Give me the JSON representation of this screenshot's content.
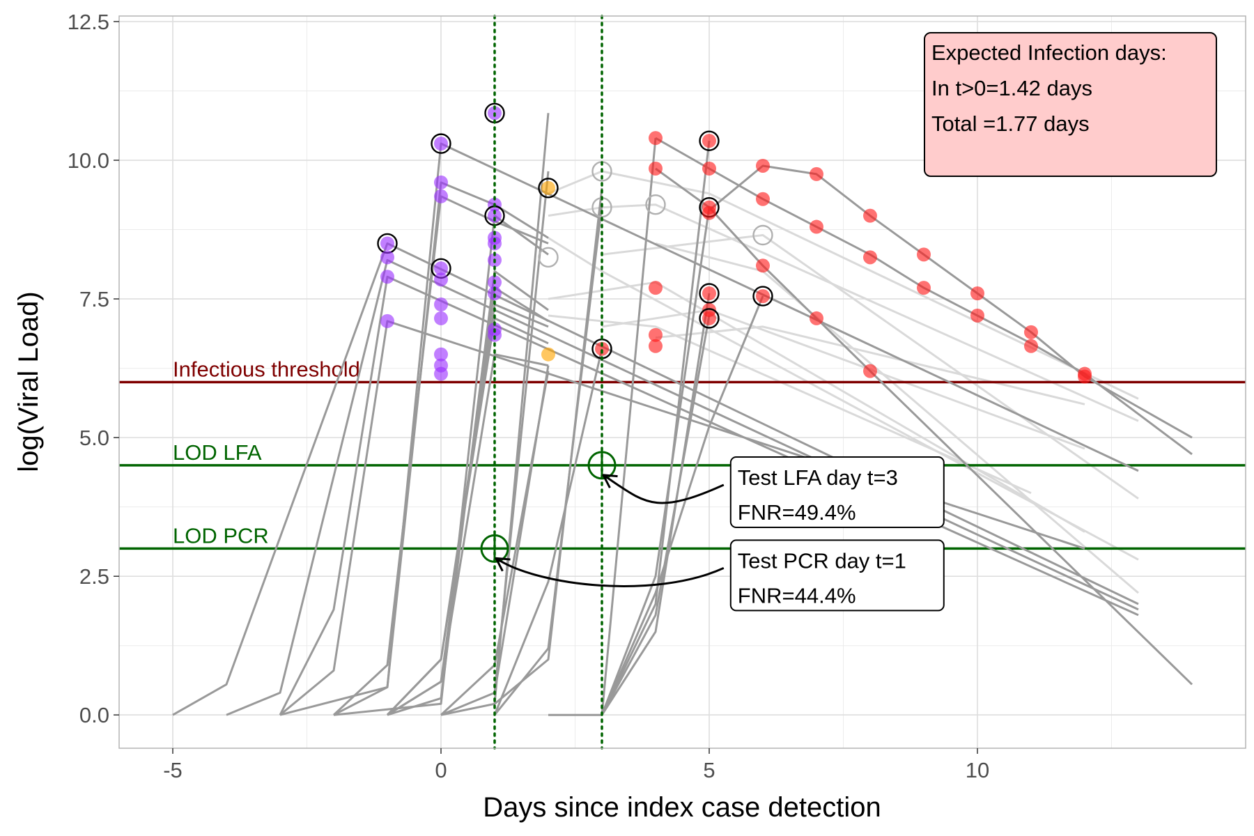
{
  "chart_data": {
    "type": "line",
    "xlabel": "Days since index case detection",
    "ylabel": "log(Viral Load)",
    "xlim": [
      -6,
      15
    ],
    "ylim": [
      -0.6,
      12.6
    ],
    "x_ticks": [
      -5,
      0,
      5,
      10
    ],
    "x_tick_labels": [
      "-5",
      "0",
      "5",
      "10"
    ],
    "y_ticks": [
      0,
      2.5,
      5,
      7.5,
      10,
      12.5
    ],
    "y_tick_labels": [
      "0.0",
      "2.5",
      "5.0",
      "7.5",
      "10.0",
      "12.5"
    ],
    "grid": true,
    "colors": {
      "trajectory": "#999999",
      "trajectory_faint": "#d9d9d9",
      "pre_index": "#9b30ff",
      "near_index": "#ffa500",
      "post_index": "#ff1a1a",
      "infectious_threshold": "#7f0000",
      "lod": "#006400",
      "info_box_fill": "#ffcccc"
    },
    "thresholds": [
      {
        "label": "Infectious threshold",
        "y": 6.0,
        "color": "#7f0000"
      },
      {
        "label": "LOD LFA",
        "y": 4.5,
        "color": "#006400"
      },
      {
        "label": "LOD PCR",
        "y": 3.0,
        "color": "#006400"
      }
    ],
    "test_days": [
      1,
      3
    ],
    "test_markers": [
      {
        "x": 1,
        "y": 3.0,
        "label": "LOD PCR test"
      },
      {
        "x": 3,
        "y": 4.5,
        "label": "LOD LFA test"
      }
    ],
    "annotations": [
      {
        "lines": [
          "Test LFA day t=3",
          "FNR=49.4%"
        ],
        "anchor": [
          3,
          4.5
        ],
        "box_left_x": 5.4,
        "box_top_y": 4.65
      },
      {
        "lines": [
          "Test PCR day t=1",
          "FNR=44.4%"
        ],
        "anchor": [
          1,
          3.0
        ],
        "box_left_x": 5.4,
        "box_top_y": 3.15
      }
    ],
    "info_box": {
      "lines": [
        "Expected Infection days:",
        "In t>0=1.42 days",
        "Total =1.77 days"
      ]
    },
    "series_trajectories": [
      {
        "x": [
          -5,
          -4,
          -1,
          13
        ],
        "y": [
          0,
          0.55,
          8.5,
          2.0
        ],
        "style": "dark"
      },
      {
        "x": [
          -4,
          -3,
          -1,
          13
        ],
        "y": [
          0,
          0.4,
          8.2,
          1.9
        ],
        "style": "dark"
      },
      {
        "x": [
          -3,
          -2,
          -1,
          13
        ],
        "y": [
          0,
          1.9,
          7.9,
          1.8
        ],
        "style": "dark"
      },
      {
        "x": [
          -3,
          -2,
          -1,
          12
        ],
        "y": [
          0,
          0.8,
          7.1,
          3.0
        ],
        "style": "dark"
      },
      {
        "x": [
          -3,
          -1,
          0,
          13
        ],
        "y": [
          0,
          0.5,
          10.3,
          4.4
        ],
        "style": "dark"
      },
      {
        "x": [
          -2,
          -1,
          0,
          1,
          2
        ],
        "y": [
          0,
          0.5,
          9.6,
          9.2,
          8.6
        ],
        "style": "dark"
      },
      {
        "x": [
          -2,
          -1,
          0,
          1,
          2
        ],
        "y": [
          0,
          0.9,
          9.35,
          8.9,
          8.5
        ],
        "style": "dark"
      },
      {
        "x": [
          -2,
          0,
          1,
          2
        ],
        "y": [
          0,
          0.2,
          9.0,
          8.3
        ],
        "style": "dark"
      },
      {
        "x": [
          -1,
          0,
          1,
          2
        ],
        "y": [
          0,
          0.3,
          8.0,
          7.3
        ],
        "style": "dark"
      },
      {
        "x": [
          -1,
          0,
          1,
          2
        ],
        "y": [
          0,
          0.6,
          7.7,
          7.1
        ],
        "style": "dark"
      },
      {
        "x": [
          -1,
          0,
          1,
          2
        ],
        "y": [
          0,
          1.0,
          7.4,
          7.0
        ],
        "style": "dark"
      },
      {
        "x": [
          0,
          1,
          2
        ],
        "y": [
          0,
          0.2,
          10.85
        ],
        "style": "dark"
      },
      {
        "x": [
          -1,
          0,
          1,
          2
        ],
        "y": [
          0,
          1.0,
          7.15,
          6.7
        ],
        "style": "dark"
      },
      {
        "x": [
          -1,
          0,
          1,
          2
        ],
        "y": [
          0,
          0.6,
          6.5,
          6.3
        ],
        "style": "dark"
      },
      {
        "x": [
          0,
          1,
          2
        ],
        "y": [
          0,
          0.4,
          6.3
        ],
        "style": "dark"
      },
      {
        "x": [
          0,
          1,
          2
        ],
        "y": [
          0,
          0.9,
          6.2
        ],
        "style": "dark"
      },
      {
        "x": [
          1,
          2
        ],
        "y": [
          0.4,
          9.8
        ],
        "style": "dark"
      },
      {
        "x": [
          1,
          2,
          3
        ],
        "y": [
          0.2,
          1.0,
          9.5
        ],
        "style": "dark"
      },
      {
        "x": [
          1,
          2,
          3
        ],
        "y": [
          0,
          1.2,
          9.2
        ],
        "style": "dark"
      },
      {
        "x": [
          1,
          2,
          3
        ],
        "y": [
          0,
          2.4,
          6.6
        ],
        "style": "dark"
      },
      {
        "x": [
          2,
          3,
          4
        ],
        "y": [
          0,
          0,
          10.4
        ],
        "style": "dark"
      },
      {
        "x": [
          3,
          4,
          5
        ],
        "y": [
          0,
          2.0,
          10.35
        ],
        "style": "dark"
      },
      {
        "x": [
          3,
          4,
          5
        ],
        "y": [
          0,
          2.5,
          9.15
        ],
        "style": "dark"
      },
      {
        "x": [
          3,
          4,
          5
        ],
        "y": [
          0,
          1.5,
          7.6
        ],
        "style": "dark"
      },
      {
        "x": [
          3,
          4,
          5
        ],
        "y": [
          0,
          1.8,
          7.2
        ],
        "style": "dark"
      },
      {
        "x": [
          3,
          4,
          5,
          6
        ],
        "y": [
          0,
          2.2,
          5.2,
          7.55
        ],
        "style": "dark"
      },
      {
        "x": [
          4,
          5,
          6,
          7,
          8,
          9,
          10,
          11,
          12,
          14
        ],
        "y": [
          10.4,
          9.85,
          9.3,
          8.8,
          8.3,
          7.7,
          7.2,
          6.7,
          6.15,
          4.7
        ],
        "style": "dark"
      },
      {
        "x": [
          5,
          6,
          7,
          8,
          9,
          10,
          11,
          12,
          14
        ],
        "y": [
          9.1,
          9.9,
          9.75,
          9.0,
          8.3,
          7.6,
          6.9,
          6.1,
          5.0
        ],
        "style": "dark"
      },
      {
        "x": [
          4,
          5,
          6,
          7,
          8,
          14
        ],
        "y": [
          9.85,
          9.15,
          8.1,
          7.15,
          6.2,
          0.55
        ],
        "style": "dark"
      },
      {
        "x": [
          2,
          3,
          5,
          13
        ],
        "y": [
          9.4,
          9.8,
          9.4,
          5.7
        ],
        "style": "faint"
      },
      {
        "x": [
          2,
          3,
          4,
          13
        ],
        "y": [
          9.0,
          9.15,
          9.2,
          5.3
        ],
        "style": "faint"
      },
      {
        "x": [
          3,
          6,
          13
        ],
        "y": [
          8.3,
          8.65,
          3.9
        ],
        "style": "faint"
      },
      {
        "x": [
          2,
          3,
          13
        ],
        "y": [
          8.6,
          8.0,
          2.8
        ],
        "style": "faint"
      },
      {
        "x": [
          2,
          4,
          12
        ],
        "y": [
          7.5,
          7.8,
          3.3
        ],
        "style": "faint"
      },
      {
        "x": [
          2,
          4,
          11
        ],
        "y": [
          7.2,
          7.0,
          4.0
        ],
        "style": "faint"
      },
      {
        "x": [
          3,
          5,
          12
        ],
        "y": [
          7.0,
          7.3,
          4.8
        ],
        "style": "faint"
      },
      {
        "x": [
          4,
          6,
          13
        ],
        "y": [
          8.5,
          8.0,
          2.2
        ],
        "style": "faint"
      },
      {
        "x": [
          4,
          6,
          12
        ],
        "y": [
          6.8,
          7.0,
          5.6
        ],
        "style": "faint"
      }
    ],
    "points": [
      {
        "x": -1,
        "y": 8.5,
        "group": "pre_index",
        "ring": true
      },
      {
        "x": -1,
        "y": 8.25,
        "group": "pre_index",
        "ring": false
      },
      {
        "x": -1,
        "y": 7.9,
        "group": "pre_index",
        "ring": false
      },
      {
        "x": -1,
        "y": 7.1,
        "group": "pre_index",
        "ring": false
      },
      {
        "x": 0,
        "y": 10.3,
        "group": "pre_index",
        "ring": true
      },
      {
        "x": 0,
        "y": 9.6,
        "group": "pre_index",
        "ring": false
      },
      {
        "x": 0,
        "y": 9.35,
        "group": "pre_index",
        "ring": false
      },
      {
        "x": 0,
        "y": 8.05,
        "group": "pre_index",
        "ring": true
      },
      {
        "x": 0,
        "y": 7.85,
        "group": "pre_index",
        "ring": false
      },
      {
        "x": 0,
        "y": 7.4,
        "group": "pre_index",
        "ring": false
      },
      {
        "x": 0,
        "y": 7.15,
        "group": "pre_index",
        "ring": false
      },
      {
        "x": 0,
        "y": 6.5,
        "group": "pre_index",
        "ring": false
      },
      {
        "x": 0,
        "y": 6.3,
        "group": "pre_index",
        "ring": false
      },
      {
        "x": 0,
        "y": 6.15,
        "group": "pre_index",
        "ring": false
      },
      {
        "x": 1,
        "y": 10.85,
        "group": "pre_index",
        "ring": true
      },
      {
        "x": 1,
        "y": 9.2,
        "group": "pre_index",
        "ring": false
      },
      {
        "x": 1,
        "y": 9.0,
        "group": "pre_index",
        "ring": true
      },
      {
        "x": 1,
        "y": 8.6,
        "group": "pre_index",
        "ring": false
      },
      {
        "x": 1,
        "y": 8.5,
        "group": "pre_index",
        "ring": false
      },
      {
        "x": 1,
        "y": 8.2,
        "group": "pre_index",
        "ring": false
      },
      {
        "x": 1,
        "y": 7.8,
        "group": "pre_index",
        "ring": false
      },
      {
        "x": 1,
        "y": 7.6,
        "group": "pre_index",
        "ring": false
      },
      {
        "x": 1,
        "y": 6.95,
        "group": "pre_index",
        "ring": false
      },
      {
        "x": 1,
        "y": 6.85,
        "group": "pre_index",
        "ring": false
      },
      {
        "x": 2,
        "y": 9.5,
        "group": "near_index",
        "ring": true
      },
      {
        "x": 2,
        "y": 6.5,
        "group": "near_index",
        "ring": false
      },
      {
        "x": 2,
        "y": 8.25,
        "group": "hollow",
        "ring": true
      },
      {
        "x": 3,
        "y": 9.8,
        "group": "hollow",
        "ring": true
      },
      {
        "x": 3,
        "y": 9.15,
        "group": "hollow",
        "ring": true
      },
      {
        "x": 4,
        "y": 9.2,
        "group": "hollow",
        "ring": true
      },
      {
        "x": 6,
        "y": 8.65,
        "group": "hollow",
        "ring": true
      },
      {
        "x": 3,
        "y": 6.6,
        "group": "post_index",
        "ring": true
      },
      {
        "x": 4,
        "y": 10.4,
        "group": "post_index",
        "ring": false
      },
      {
        "x": 4,
        "y": 9.85,
        "group": "post_index",
        "ring": false
      },
      {
        "x": 4,
        "y": 7.7,
        "group": "post_index",
        "ring": false
      },
      {
        "x": 4,
        "y": 6.85,
        "group": "post_index",
        "ring": false
      },
      {
        "x": 4,
        "y": 6.65,
        "group": "post_index",
        "ring": false
      },
      {
        "x": 5,
        "y": 10.35,
        "group": "post_index",
        "ring": true
      },
      {
        "x": 5,
        "y": 9.85,
        "group": "post_index",
        "ring": false
      },
      {
        "x": 5,
        "y": 9.15,
        "group": "post_index",
        "ring": true
      },
      {
        "x": 5,
        "y": 9.05,
        "group": "post_index",
        "ring": false
      },
      {
        "x": 5,
        "y": 7.6,
        "group": "post_index",
        "ring": true
      },
      {
        "x": 5,
        "y": 7.3,
        "group": "post_index",
        "ring": false
      },
      {
        "x": 5,
        "y": 7.15,
        "group": "post_index",
        "ring": true
      },
      {
        "x": 6,
        "y": 9.9,
        "group": "post_index",
        "ring": false
      },
      {
        "x": 6,
        "y": 9.3,
        "group": "post_index",
        "ring": false
      },
      {
        "x": 6,
        "y": 8.1,
        "group": "post_index",
        "ring": false
      },
      {
        "x": 6,
        "y": 7.55,
        "group": "post_index",
        "ring": true
      },
      {
        "x": 7,
        "y": 9.75,
        "group": "post_index",
        "ring": false
      },
      {
        "x": 7,
        "y": 8.8,
        "group": "post_index",
        "ring": false
      },
      {
        "x": 7,
        "y": 7.15,
        "group": "post_index",
        "ring": false
      },
      {
        "x": 8,
        "y": 9.0,
        "group": "post_index",
        "ring": false
      },
      {
        "x": 8,
        "y": 8.25,
        "group": "post_index",
        "ring": false
      },
      {
        "x": 8,
        "y": 6.2,
        "group": "post_index",
        "ring": false
      },
      {
        "x": 9,
        "y": 8.3,
        "group": "post_index",
        "ring": false
      },
      {
        "x": 9,
        "y": 7.7,
        "group": "post_index",
        "ring": false
      },
      {
        "x": 10,
        "y": 7.6,
        "group": "post_index",
        "ring": false
      },
      {
        "x": 10,
        "y": 7.2,
        "group": "post_index",
        "ring": false
      },
      {
        "x": 11,
        "y": 6.9,
        "group": "post_index",
        "ring": false
      },
      {
        "x": 11,
        "y": 6.65,
        "group": "post_index",
        "ring": false
      },
      {
        "x": 12,
        "y": 6.15,
        "group": "post_index",
        "ring": false
      },
      {
        "x": 12,
        "y": 6.1,
        "group": "post_index",
        "ring": false
      }
    ]
  }
}
